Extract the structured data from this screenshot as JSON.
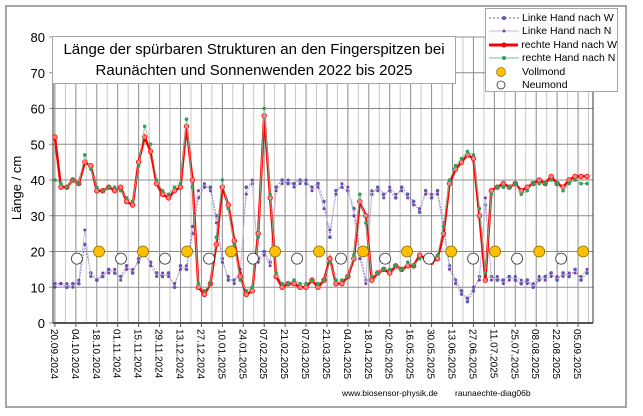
{
  "chart_data": {
    "type": "line",
    "title_line1": "Länge der spürbaren Strukturen an den Fingerspitzen bei",
    "title_line2": "Raunächten  und Sonnenwenden 2022 bis 2025",
    "ylabel": "Länge / cm",
    "ylim": [
      0,
      80
    ],
    "yticks": [
      "0",
      "10",
      "20",
      "30",
      "40",
      "50",
      "60",
      "70",
      "80"
    ],
    "x_start_date": "20.09.2024",
    "x_step_days": 4,
    "xlim_days": [
      -1.3,
      360
    ],
    "xtick_labels": [
      "20.09.2024",
      "04.10.2024",
      "18.10.2024",
      "01.11.2024",
      "15.11.2024",
      "29.11.2024",
      "13.12.2024",
      "27.12.2024",
      "10.01.2025",
      "24.01.2025",
      "07.02.2025",
      "21.02.2025",
      "07.03.2025",
      "21.03.2025",
      "04.04.2025",
      "18.04.2025",
      "02.05.2025",
      "16.05.2025",
      "30.05.2025",
      "13.06.2025",
      "27.06.2025",
      "11.07.2025",
      "25.07.2025",
      "08.08.2025",
      "22.08.2025",
      "05.09.2025"
    ],
    "grid": true,
    "legend_position": "top-right",
    "series": [
      {
        "name": "Linke Hand nach W",
        "color": "#5b5fb0",
        "values": [
          11,
          11,
          10,
          11,
          11,
          22,
          14,
          12,
          13,
          15,
          14,
          13,
          16,
          14,
          18,
          19,
          17,
          14,
          13,
          14,
          10,
          16,
          15,
          25,
          35,
          38,
          38,
          30,
          18,
          12,
          12,
          14,
          38,
          39,
          18,
          20,
          17,
          38,
          40,
          39,
          39,
          40,
          39,
          38,
          39,
          34,
          24,
          37,
          38,
          37,
          32,
          20,
          12,
          36,
          38,
          36,
          37,
          35,
          38,
          36,
          34,
          31,
          37,
          35,
          37,
          28,
          16,
          12,
          9,
          6,
          9,
          13,
          33,
          13,
          12,
          12,
          13,
          12,
          11,
          12,
          10,
          12,
          13,
          14,
          12,
          14,
          13,
          15,
          12,
          14
        ]
      },
      {
        "name": "Linke Hand nach N",
        "color": "#7a3fa0",
        "values": [
          10,
          11,
          11,
          10,
          12,
          26,
          13,
          12,
          14,
          14,
          15,
          12,
          15,
          15,
          17,
          20,
          16,
          13,
          14,
          13,
          11,
          15,
          16,
          27,
          37,
          39,
          37,
          28,
          17,
          13,
          11,
          15,
          36,
          40,
          17,
          19,
          16,
          37,
          39,
          40,
          38,
          39,
          40,
          37,
          38,
          32,
          26,
          36,
          39,
          38,
          30,
          18,
          11,
          37,
          37,
          35,
          38,
          36,
          37,
          35,
          33,
          32,
          36,
          36,
          36,
          26,
          15,
          11,
          8,
          7,
          10,
          12,
          35,
          12,
          13,
          11,
          12,
          13,
          12,
          11,
          11,
          13,
          12,
          13,
          13,
          13,
          14,
          14,
          13,
          15
        ]
      },
      {
        "name": "rechte Hand nach W",
        "color": "#ff0000",
        "values": [
          52,
          38,
          38,
          40,
          39,
          45,
          44,
          37,
          37,
          38,
          37,
          38,
          34,
          33,
          45,
          52,
          48,
          39,
          36,
          35,
          37,
          38,
          55,
          40,
          10,
          8,
          11,
          22,
          38,
          33,
          23,
          13,
          8,
          9,
          25,
          58,
          35,
          13,
          10,
          11,
          11,
          10,
          10,
          12,
          10,
          12,
          18,
          11,
          11,
          13,
          18,
          34,
          30,
          12,
          14,
          15,
          14,
          16,
          15,
          16,
          16,
          19,
          18,
          17,
          18,
          25,
          39,
          43,
          45,
          47,
          46,
          30,
          12,
          37,
          38,
          39,
          38,
          39,
          37,
          38,
          39,
          40,
          39,
          41,
          39,
          38,
          40,
          41,
          41,
          41
        ]
      },
      {
        "name": "rechte Hand nach N",
        "color": "#2ea05a",
        "values": [
          40,
          39,
          38,
          40,
          39,
          47,
          43,
          38,
          37,
          38,
          38,
          37,
          35,
          34,
          44,
          55,
          50,
          40,
          37,
          36,
          38,
          39,
          57,
          38,
          11,
          9,
          11,
          24,
          40,
          32,
          22,
          12,
          9,
          10,
          24,
          60,
          36,
          14,
          11,
          11,
          12,
          11,
          11,
          12,
          11,
          12,
          17,
          12,
          12,
          13,
          19,
          36,
          28,
          13,
          14,
          15,
          15,
          16,
          15,
          17,
          16,
          18,
          18,
          18,
          19,
          27,
          40,
          44,
          46,
          48,
          47,
          32,
          14,
          36,
          38,
          38,
          38,
          39,
          36,
          37,
          39,
          39,
          39,
          40,
          39,
          37,
          39,
          40,
          39,
          39
        ]
      }
    ],
    "full_moon": {
      "name": "Vollmond",
      "color": "#ffc000",
      "value": 20,
      "days": [
        29.5,
        58.9,
        88.4,
        117.8,
        147.3,
        176.7,
        206.2,
        235.6,
        265.1,
        294.5,
        324,
        353.4
      ]
    },
    "new_moon": {
      "name": "Neumond",
      "color": "#ffffff",
      "value": 18,
      "days": [
        14.7,
        44.2,
        73.6,
        103.1,
        132.5,
        162,
        191.4,
        220.9,
        250.3,
        279.8,
        309.2,
        338.7
      ]
    }
  },
  "footer": {
    "website": "www.biosensor-physik.de",
    "diagram_id": "raunaechte-diag06b"
  }
}
